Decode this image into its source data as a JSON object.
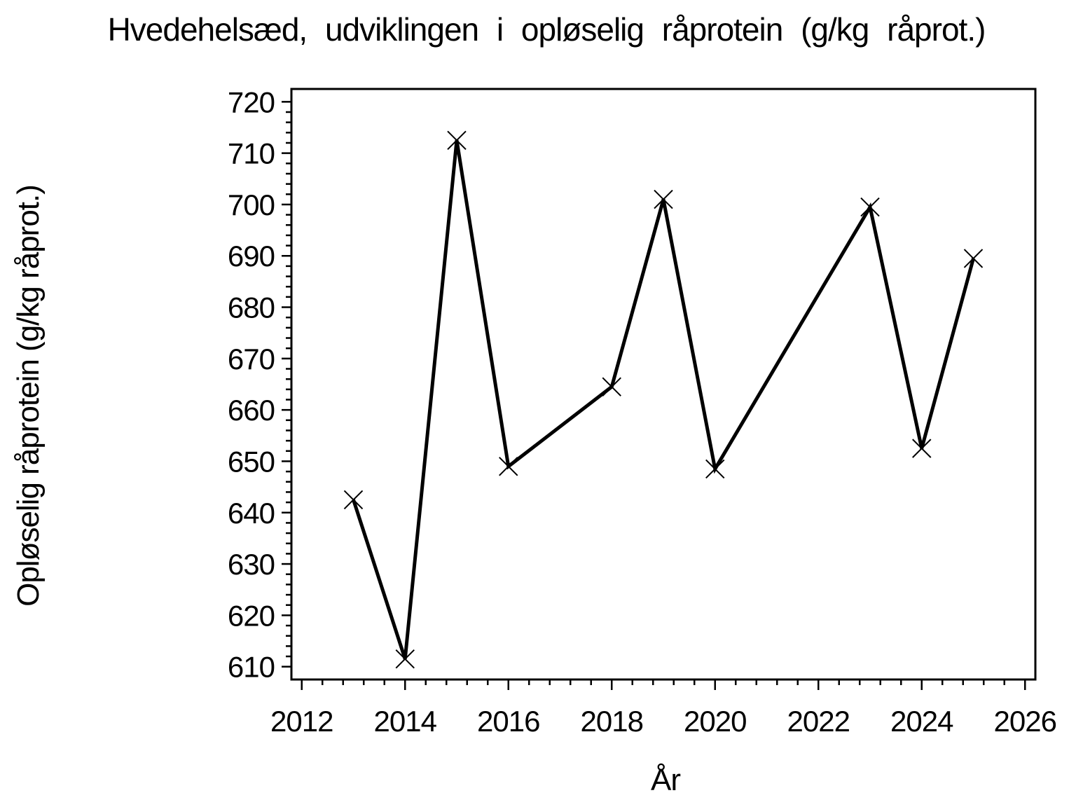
{
  "page": {
    "background": "#ffffff",
    "foreground": "#000000"
  },
  "chart_data": {
    "type": "line",
    "title": "Hvedehelsæd, udviklingen i opløselig råprotein (g/kg råprot.)",
    "xlabel": "År",
    "ylabel": "Opløselig råprotein (g/kg råprot.)",
    "x": [
      2013,
      2014,
      2015,
      2016,
      2018,
      2019,
      2020,
      2023,
      2024,
      2025
    ],
    "y": [
      642.5,
      611.5,
      712.5,
      649,
      664.5,
      701,
      648.5,
      699.5,
      652.5,
      689.5
    ],
    "marker": "x",
    "line_color": "#000000",
    "marker_color": "#000000",
    "plot_background": "#ffffff",
    "grid": false,
    "legend": "none",
    "xlim": [
      2011.8,
      2026.2
    ],
    "ylim": [
      607.5,
      722.5
    ],
    "x_ticks": {
      "major_start": 2012,
      "major_end": 2026,
      "major_step": 2,
      "minor_step": 0.4,
      "labels": [
        "2012",
        "2014",
        "2016",
        "2018",
        "2020",
        "2022",
        "2024",
        "2026"
      ]
    },
    "y_ticks": {
      "major_start": 610,
      "major_end": 720,
      "major_step": 10,
      "minor_step": 2,
      "labels": [
        "610",
        "620",
        "630",
        "640",
        "650",
        "660",
        "670",
        "680",
        "690",
        "700",
        "710",
        "720"
      ]
    }
  }
}
